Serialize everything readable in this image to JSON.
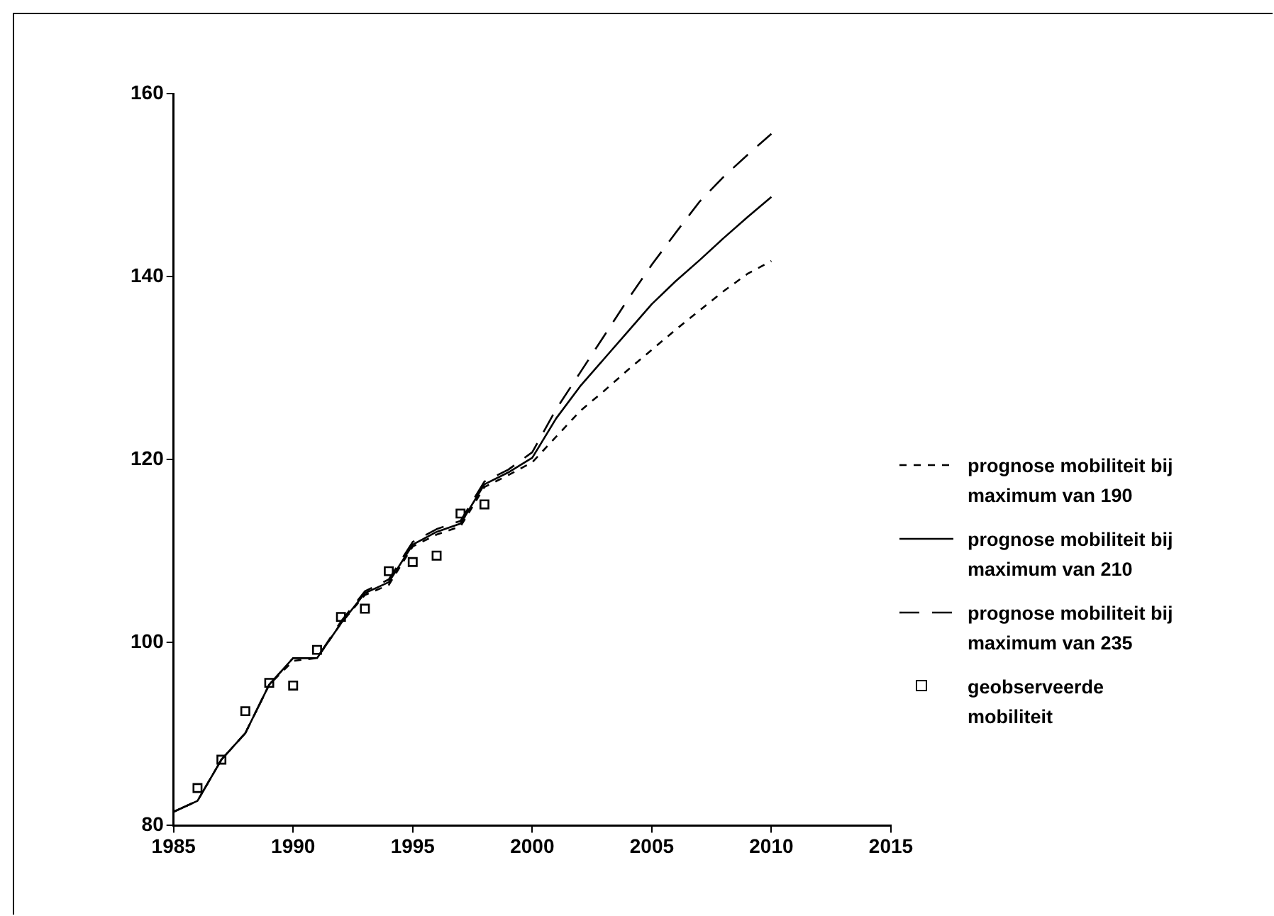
{
  "chart_data": {
    "type": "line",
    "xlim": [
      1985,
      2015
    ],
    "xticks": [
      1985,
      1990,
      1995,
      2000,
      2005,
      2010,
      2015
    ],
    "ylim": [
      80,
      160
    ],
    "yticks": [
      80,
      100,
      120,
      140,
      160
    ],
    "grid": false,
    "legend": "right",
    "x": [
      1985,
      1986,
      1987,
      1988,
      1989,
      1990,
      1991,
      1992,
      1993,
      1994,
      1995,
      1996,
      1997,
      1998,
      1999,
      2000,
      2001,
      2002,
      2003,
      2004,
      2005,
      2006,
      2007,
      2008,
      2009,
      2010
    ],
    "series": [
      {
        "name": "prognose mobiliteit bij maximum van 190",
        "color": "#000000",
        "line_style": "dotted",
        "marker": "none",
        "values": [
          81.5,
          82.7,
          87.2,
          90.1,
          95.4,
          98.0,
          98.3,
          102.1,
          105.2,
          106.3,
          110.5,
          111.8,
          112.7,
          117.0,
          118.3,
          119.7,
          122.5,
          125.3,
          127.5,
          129.8,
          132.0,
          134.2,
          136.3,
          138.4,
          140.3,
          141.7
        ]
      },
      {
        "name": "prognose mobiliteit bij maximum van 210",
        "color": "#000000",
        "line_style": "solid",
        "marker": "none",
        "values": [
          81.5,
          82.7,
          87.2,
          90.1,
          95.4,
          98.3,
          98.3,
          102.1,
          105.4,
          106.6,
          110.7,
          112.1,
          113.0,
          117.3,
          118.6,
          120.2,
          124.5,
          128.0,
          131.0,
          134.0,
          137.0,
          139.5,
          141.8,
          144.2,
          146.5,
          148.7
        ]
      },
      {
        "name": "prognose mobiliteit bij maximum van 235",
        "color": "#000000",
        "line_style": "dashed",
        "marker": "none",
        "values": [
          81.5,
          82.7,
          87.2,
          90.1,
          95.4,
          98.3,
          98.3,
          102.3,
          105.6,
          106.9,
          111.0,
          112.4,
          113.3,
          117.6,
          118.9,
          120.8,
          125.5,
          129.5,
          133.5,
          137.5,
          141.3,
          144.8,
          148.2,
          150.9,
          153.3,
          155.6
        ]
      },
      {
        "name": "geobserveerde mobiliteit",
        "type": "scatter",
        "color": "#000000",
        "marker": "square",
        "x": [
          1986,
          1987,
          1988,
          1989,
          1990,
          1991,
          1992,
          1993,
          1994,
          1995,
          1996,
          1997,
          1998
        ],
        "values": [
          84.1,
          87.2,
          92.5,
          95.6,
          95.3,
          99.2,
          102.8,
          103.7,
          107.8,
          108.8,
          109.5,
          114.1,
          115.1
        ]
      }
    ]
  }
}
